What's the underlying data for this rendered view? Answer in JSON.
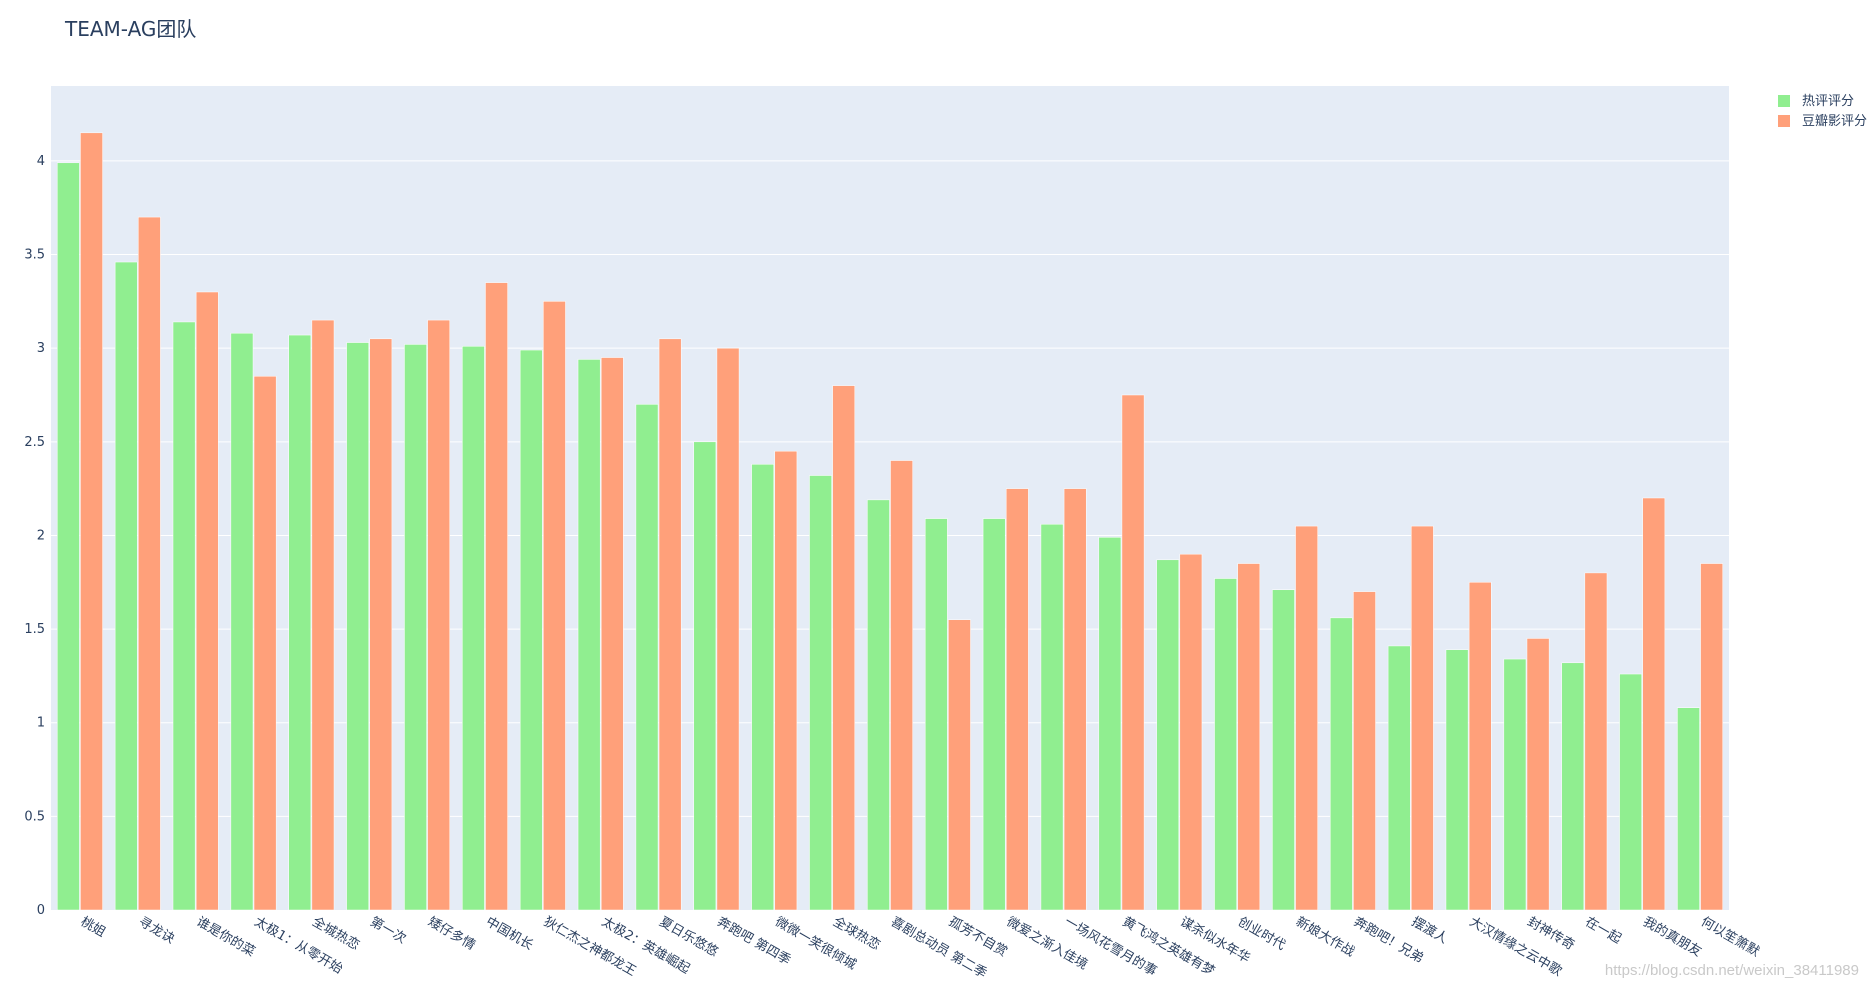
{
  "chart_data": {
    "type": "bar",
    "title": "TEAM-AG团队",
    "xlabel": "",
    "ylabel": "",
    "ylim": [
      0,
      4.4
    ],
    "yticks": [
      0,
      0.5,
      1,
      1.5,
      2,
      2.5,
      3,
      3.5,
      4
    ],
    "ytick_labels": [
      "0",
      "0.5",
      "1",
      "1.5",
      "2",
      "2.5",
      "3",
      "3.5",
      "4"
    ],
    "grid": true,
    "legend": "top-right",
    "categories": [
      "桃姐",
      "寻龙诀",
      "谁是你的菜",
      "太极1：从零开始",
      "全城热恋",
      "第一次",
      "矮仔多情",
      "中国机长",
      "狄仁杰之神都龙王",
      "太极2：英雄崛起",
      "夏日乐悠悠",
      "奔跑吧 第四季",
      "微微一笑很倾城",
      "全球热恋",
      "喜剧总动员 第二季",
      "孤芳不自赏",
      "微爱之渐入佳境",
      "一场风花雪月的事",
      "黄飞鸿之英雄有梦",
      "谋杀似水年华",
      "创业时代",
      "新娘大作战",
      "奔跑吧！兄弟",
      "摆渡人",
      "大汉情缘之云中歌",
      "封神传奇",
      "在一起",
      "我的真朋友",
      "何以笙箫默"
    ],
    "series": [
      {
        "name": "热评评分",
        "color": "#90ee90",
        "values": [
          3.99,
          3.46,
          3.14,
          3.08,
          3.07,
          3.03,
          3.02,
          3.01,
          2.99,
          2.94,
          2.7,
          2.5,
          2.38,
          2.32,
          2.19,
          2.09,
          2.09,
          2.06,
          1.99,
          1.87,
          1.77,
          1.71,
          1.56,
          1.41,
          1.39,
          1.34,
          1.32,
          1.26,
          1.08
        ]
      },
      {
        "name": "豆瓣影评分",
        "color": "#ffa07a",
        "values": [
          4.15,
          3.7,
          3.3,
          2.85,
          3.15,
          3.05,
          3.15,
          3.35,
          3.25,
          2.95,
          3.05,
          3.0,
          2.45,
          2.8,
          2.4,
          1.55,
          2.25,
          2.25,
          2.75,
          1.9,
          1.85,
          2.05,
          1.7,
          2.05,
          1.75,
          1.45,
          1.8,
          2.2,
          1.85
        ]
      }
    ]
  },
  "watermark": "https://blog.csdn.net/weixin_38411989"
}
